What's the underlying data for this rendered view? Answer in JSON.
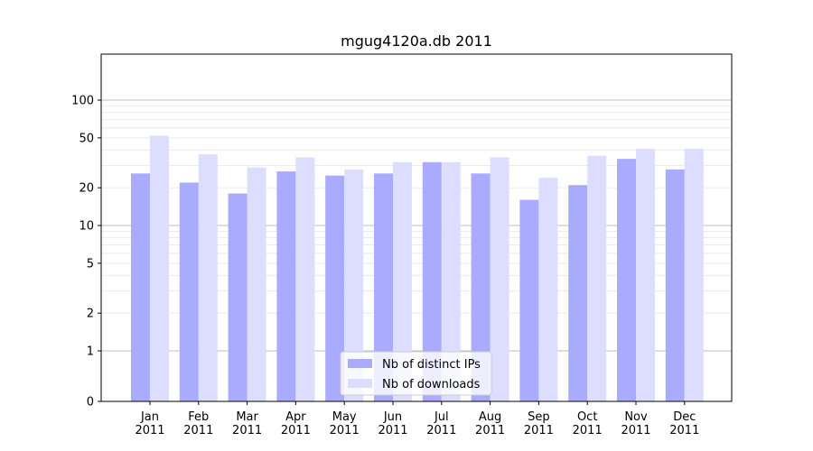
{
  "chart_data": {
    "type": "bar",
    "title": "mgug4120a.db 2011",
    "xlabel": "",
    "ylabel": "",
    "yscale": "symlog",
    "ylim": [
      0,
      110
    ],
    "yticks": [
      0,
      1,
      2,
      5,
      10,
      20,
      50,
      100
    ],
    "ytick_labels": [
      "0",
      "1",
      "2",
      "5",
      "10",
      "20",
      "50",
      "100"
    ],
    "grid": true,
    "legend_position": "bottom-center",
    "categories": [
      "Jan\n2011",
      "Feb\n2011",
      "Mar\n2011",
      "Apr\n2011",
      "May\n2011",
      "Jun\n2011",
      "Jul\n2011",
      "Aug\n2011",
      "Sep\n2011",
      "Oct\n2011",
      "Nov\n2011",
      "Dec\n2011"
    ],
    "category_lines": [
      [
        "Jan",
        "2011"
      ],
      [
        "Feb",
        "2011"
      ],
      [
        "Mar",
        "2011"
      ],
      [
        "Apr",
        "2011"
      ],
      [
        "May",
        "2011"
      ],
      [
        "Jun",
        "2011"
      ],
      [
        "Jul",
        "2011"
      ],
      [
        "Aug",
        "2011"
      ],
      [
        "Sep",
        "2011"
      ],
      [
        "Oct",
        "2011"
      ],
      [
        "Nov",
        "2011"
      ],
      [
        "Dec",
        "2011"
      ]
    ],
    "series": [
      {
        "name": "Nb of distinct IPs",
        "color": "#aaaaff",
        "values": [
          26,
          22,
          18,
          27,
          25,
          26,
          32,
          26,
          16,
          21,
          34,
          28
        ]
      },
      {
        "name": "Nb of downloads",
        "color": "#ddddff",
        "values": [
          52,
          37,
          29,
          35,
          28,
          32,
          32,
          35,
          24,
          36,
          41,
          41
        ]
      }
    ]
  }
}
